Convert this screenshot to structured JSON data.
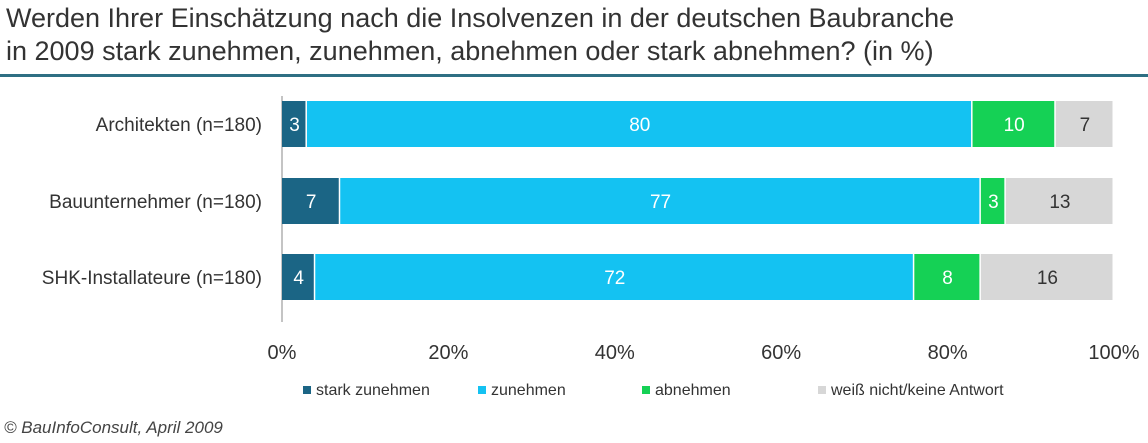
{
  "title_line1": "Werden Ihrer Einschätzung nach die Insolvenzen in der deutschen Baubranche",
  "title_line2": "in 2009 stark zunehmen, zunehmen, abnehmen oder stark abnehmen? (in %)",
  "source": "© BauInfoConsult,  April 2009",
  "colors": {
    "stark_zunehmen": "#1b6585",
    "zunehmen": "#14c2f2",
    "abnehmen": "#15d155",
    "weiss_nicht": "#d7d7d7",
    "title_rule": "#2e6f83"
  },
  "chart_data": {
    "type": "bar",
    "orientation": "horizontal",
    "stacked": true,
    "categories": [
      "Architekten (n=180)",
      "Bauunternehmer (n=180)",
      "SHK-Installateure (n=180)"
    ],
    "series": [
      {
        "name": "stark zunehmen",
        "values": [
          3,
          7,
          4
        ]
      },
      {
        "name": "zunehmen",
        "values": [
          80,
          77,
          72
        ]
      },
      {
        "name": "abnehmen",
        "values": [
          10,
          3,
          8
        ]
      },
      {
        "name": "weiß nicht/keine Antwort",
        "values": [
          7,
          13,
          16
        ]
      }
    ],
    "xlim": [
      0,
      100
    ],
    "xticks": [
      "0%",
      "20%",
      "40%",
      "60%",
      "80%",
      "100%"
    ],
    "legend_position": "bottom"
  }
}
